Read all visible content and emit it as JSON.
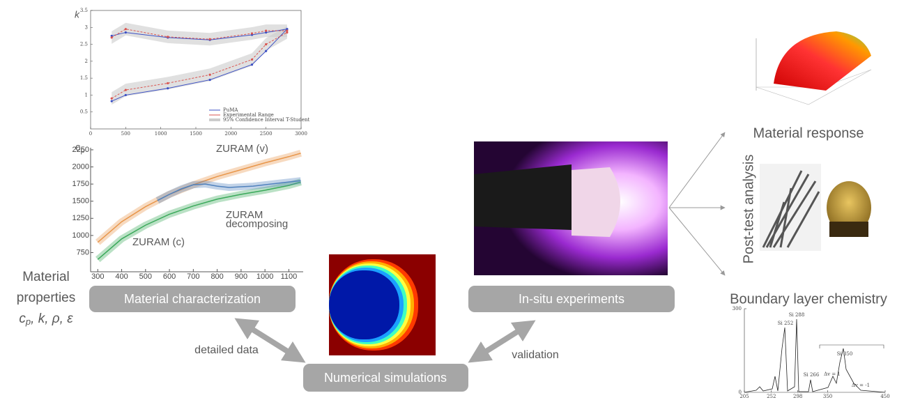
{
  "k_chart": {
    "y_label": "k",
    "xlim": [
      0,
      3000
    ],
    "ylim": [
      0,
      3.5
    ],
    "xticks": [
      0,
      500,
      1000,
      1500,
      2000,
      2500,
      3000
    ],
    "yticks": [
      0.5,
      1,
      1.5,
      2,
      2.5,
      3,
      3.5
    ],
    "x": [
      300,
      500,
      1100,
      1700,
      2300,
      2500,
      2800
    ],
    "series": [
      {
        "name": "PuMA",
        "color": "#3b4fc4",
        "branches": [
          [
            2.75,
            2.85,
            2.7,
            2.63,
            2.78,
            2.85,
            2.95
          ],
          [
            0.82,
            1.0,
            1.2,
            1.45,
            1.9,
            2.3,
            2.95
          ]
        ]
      },
      {
        "name": "Experimental Range",
        "color": "#d9534f",
        "branches": [
          [
            2.7,
            2.95,
            2.72,
            2.65,
            2.82,
            2.9,
            2.9
          ],
          [
            0.9,
            1.15,
            1.35,
            1.6,
            2.05,
            2.5,
            2.85
          ]
        ]
      }
    ],
    "band_label": "95% Confidence Interval T-Student"
  },
  "cp_chart": {
    "y_label": {
      "main": "c",
      "sub": "p"
    },
    "xlim": [
      270,
      1160
    ],
    "ylim": [
      470,
      2280
    ],
    "xticks": [
      300,
      400,
      500,
      600,
      700,
      800,
      900,
      1000,
      1100
    ],
    "yticks": [
      750,
      1000,
      1250,
      1500,
      1750,
      2000,
      2250
    ],
    "series": [
      {
        "name": "ZURAM (v)",
        "color": "#e8964a",
        "x": [
          300,
          400,
          500,
          600,
          700,
          800,
          900,
          1000,
          1100,
          1150
        ],
        "values": [
          900,
          1200,
          1420,
          1600,
          1740,
          1860,
          1960,
          2060,
          2150,
          2200
        ]
      },
      {
        "name": "ZURAM (c)",
        "color": "#3aa95a",
        "x": [
          300,
          400,
          500,
          600,
          700,
          800,
          900,
          1000,
          1100,
          1150
        ],
        "values": [
          650,
          950,
          1150,
          1310,
          1430,
          1530,
          1600,
          1660,
          1730,
          1780
        ]
      },
      {
        "name": [
          "ZURAM",
          "decomposing"
        ],
        "color": "#4f81bd",
        "x": [
          550,
          600,
          650,
          700,
          750,
          800,
          850,
          900,
          950,
          1000,
          1050,
          1100,
          1150
        ],
        "values": [
          1510,
          1600,
          1680,
          1740,
          1750,
          1720,
          1700,
          1710,
          1720,
          1740,
          1760,
          1780,
          1800
        ]
      }
    ]
  },
  "left_label": {
    "lines": [
      "Material",
      "properties"
    ],
    "symbols": {
      "main": "c",
      "sub": "p",
      "rest": ", k, ρ, ε"
    }
  },
  "boxes": {
    "characterization": "Material characterization",
    "simulations": "Numerical simulations",
    "experiments": "In-situ experiments"
  },
  "arrow_labels": {
    "detailed": "detailed data",
    "validation": "validation"
  },
  "right_labels": {
    "response": "Material response",
    "post_test": "Post-test analysis",
    "chemistry": "Boundary layer chemistry"
  },
  "spectrum": {
    "xlim": [
      205,
      450
    ],
    "ylim": [
      0,
      300
    ],
    "xticks": [
      205,
      252,
      298,
      350,
      450
    ],
    "yticks": [
      0,
      300
    ],
    "peak_labels": [
      "Si 252",
      "Si 288",
      "Si 266",
      "Si 350",
      "Δv = 1",
      "Δv = -1"
    ]
  }
}
